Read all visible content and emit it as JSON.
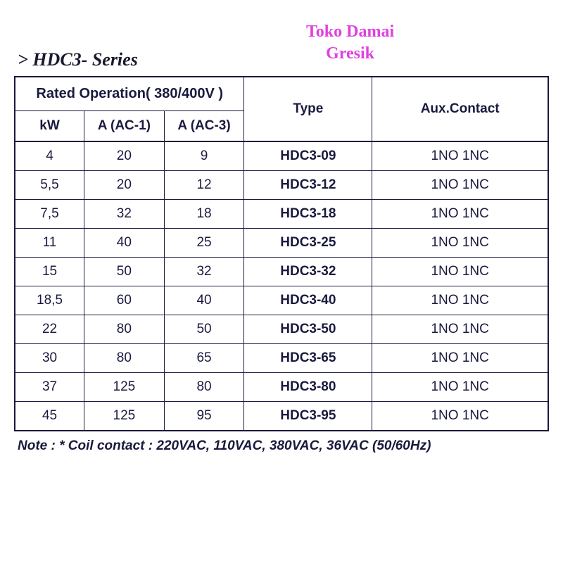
{
  "title": "> HDC3- Series",
  "watermark_line1": "Toko Damai",
  "watermark_line2": "Gresik",
  "headers": {
    "group": "Rated Operation( 380/400V )",
    "kw": "kW",
    "ac1": "A (AC-1)",
    "ac3": "A (AC-3)",
    "type": "Type",
    "aux": "Aux.Contact"
  },
  "rows": [
    {
      "kw": "4",
      "ac1": "20",
      "ac3": "9",
      "type": "HDC3-09",
      "aux": "1NO  1NC"
    },
    {
      "kw": "5,5",
      "ac1": "20",
      "ac3": "12",
      "type": "HDC3-12",
      "aux": "1NO  1NC"
    },
    {
      "kw": "7,5",
      "ac1": "32",
      "ac3": "18",
      "type": "HDC3-18",
      "aux": "1NO  1NC"
    },
    {
      "kw": "11",
      "ac1": "40",
      "ac3": "25",
      "type": "HDC3-25",
      "aux": "1NO  1NC"
    },
    {
      "kw": "15",
      "ac1": "50",
      "ac3": "32",
      "type": "HDC3-32",
      "aux": "1NO  1NC"
    },
    {
      "kw": "18,5",
      "ac1": "60",
      "ac3": "40",
      "type": "HDC3-40",
      "aux": "1NO  1NC"
    },
    {
      "kw": "22",
      "ac1": "80",
      "ac3": "50",
      "type": "HDC3-50",
      "aux": "1NO  1NC"
    },
    {
      "kw": "30",
      "ac1": "80",
      "ac3": "65",
      "type": "HDC3-65",
      "aux": "1NO  1NC"
    },
    {
      "kw": "37",
      "ac1": "125",
      "ac3": "80",
      "type": "HDC3-80",
      "aux": "1NO  1NC"
    },
    {
      "kw": "45",
      "ac1": "125",
      "ac3": "95",
      "type": "HDC3-95",
      "aux": "1NO  1NC"
    }
  ],
  "note": "Note : * Coil contact : 220VAC, 110VAC, 380VAC, 36VAC (50/60Hz)",
  "styling": {
    "title_fontsize": 26,
    "title_color": "#1a1a2e",
    "watermark_color": "#e040e0",
    "watermark_fontsize": 24,
    "border_color": "#1a1a3e",
    "border_thick": 2.5,
    "border_thin": 1,
    "header_fontsize": 19,
    "cell_fontsize": 19,
    "note_fontsize": 19,
    "text_color": "#1a1a3e",
    "background": "#ffffff",
    "col_widths_pct": [
      13,
      15,
      15,
      24,
      33
    ]
  }
}
